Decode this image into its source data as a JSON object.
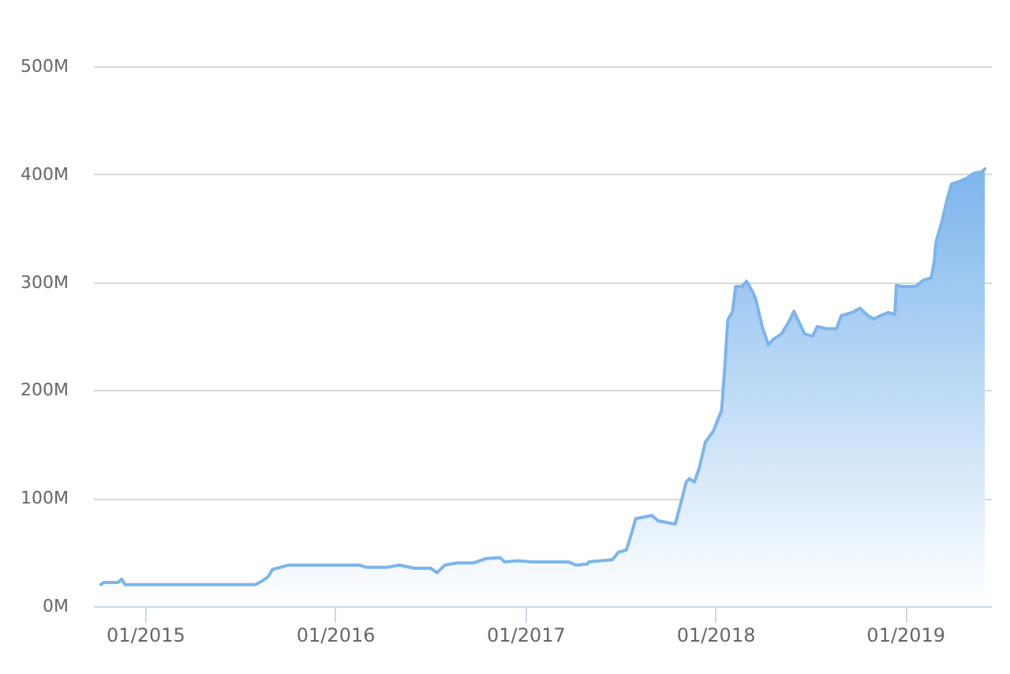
{
  "chart_data": {
    "type": "area",
    "x": [
      "2014-10-08",
      "2014-10-14",
      "2014-11-10",
      "2014-11-17",
      "2014-11-23",
      "2015-08-01",
      "2015-08-13",
      "2015-08-19",
      "2015-08-25",
      "2015-09-03",
      "2015-10-03",
      "2015-10-31",
      "2016-02-17",
      "2016-03-01",
      "2016-04-10",
      "2016-05-04",
      "2016-06-02",
      "2016-07-03",
      "2016-07-15",
      "2016-07-30",
      "2016-08-23",
      "2016-09-23",
      "2016-10-17",
      "2016-11-13",
      "2016-11-22",
      "2016-12-17",
      "2017-01-13",
      "2017-03-24",
      "2017-04-08",
      "2017-04-30",
      "2017-05-03",
      "2017-06-17",
      "2017-06-29",
      "2017-07-14",
      "2017-07-23",
      "2017-08-01",
      "2017-09-01",
      "2017-09-13",
      "2017-10-16",
      "2017-10-28",
      "2017-11-06",
      "2017-11-12",
      "2017-11-22",
      "2017-12-01",
      "2017-12-13",
      "2017-12-28",
      "2018-01-07",
      "2018-01-13",
      "2018-01-19",
      "2018-01-25",
      "2018-02-03",
      "2018-02-09",
      "2018-02-21",
      "2018-03-02",
      "2018-03-14",
      "2018-03-20",
      "2018-04-01",
      "2018-04-13",
      "2018-04-22",
      "2018-05-08",
      "2018-05-23",
      "2018-06-01",
      "2018-06-10",
      "2018-06-22",
      "2018-07-07",
      "2018-07-16",
      "2018-08-01",
      "2018-08-22",
      "2018-08-31",
      "2018-09-21",
      "2018-10-06",
      "2018-10-21",
      "2018-11-02",
      "2018-11-14",
      "2018-11-30",
      "2018-12-12",
      "2018-12-15",
      "2018-12-27",
      "2019-01-21",
      "2019-02-05",
      "2019-02-20",
      "2019-02-26",
      "2019-03-01",
      "2019-03-13",
      "2019-03-22",
      "2019-03-31",
      "2019-04-13",
      "2019-04-28",
      "2019-05-13",
      "2019-05-28",
      "2019-06-03"
    ],
    "series": [
      {
        "color": "#7cb5ec",
        "values": [
          20,
          22,
          22,
          25,
          20,
          20,
          23,
          25,
          27,
          34,
          38,
          38,
          38,
          36,
          36,
          38,
          35,
          35,
          31,
          38,
          40,
          40,
          44,
          45,
          41,
          42,
          41,
          41,
          38,
          39,
          41,
          43,
          50,
          52,
          66,
          81,
          84,
          79,
          76,
          98,
          115,
          118,
          115,
          128,
          152,
          162,
          174,
          181,
          220,
          265,
          273,
          296,
          296,
          301,
          291,
          284,
          259,
          242,
          247,
          252,
          264,
          273,
          264,
          252,
          250,
          259,
          257,
          257,
          269,
          272,
          276,
          269,
          266,
          269,
          272,
          270,
          297,
          296,
          296,
          302,
          304,
          320,
          337,
          357,
          376,
          391,
          393,
          396,
          401,
          402,
          405
        ]
      }
    ],
    "xlim": [
      "2014-09-23",
      "2019-06-15"
    ],
    "xticks": [
      {
        "value": "2015-01",
        "label": "01/2015"
      },
      {
        "value": "2016-01",
        "label": "01/2016"
      },
      {
        "value": "2017-01",
        "label": "01/2017"
      },
      {
        "value": "2018-01",
        "label": "01/2018"
      },
      {
        "value": "2019-01",
        "label": "01/2019"
      }
    ],
    "ylim": [
      0,
      500
    ],
    "yticks": [
      {
        "value": 0,
        "label": "0M"
      },
      {
        "value": 100,
        "label": "100M"
      },
      {
        "value": 200,
        "label": "200M"
      },
      {
        "value": 300,
        "label": "300M"
      },
      {
        "value": 400,
        "label": "400M"
      },
      {
        "value": 500,
        "label": "500M"
      }
    ],
    "grid": "y",
    "line_style": "solid"
  }
}
